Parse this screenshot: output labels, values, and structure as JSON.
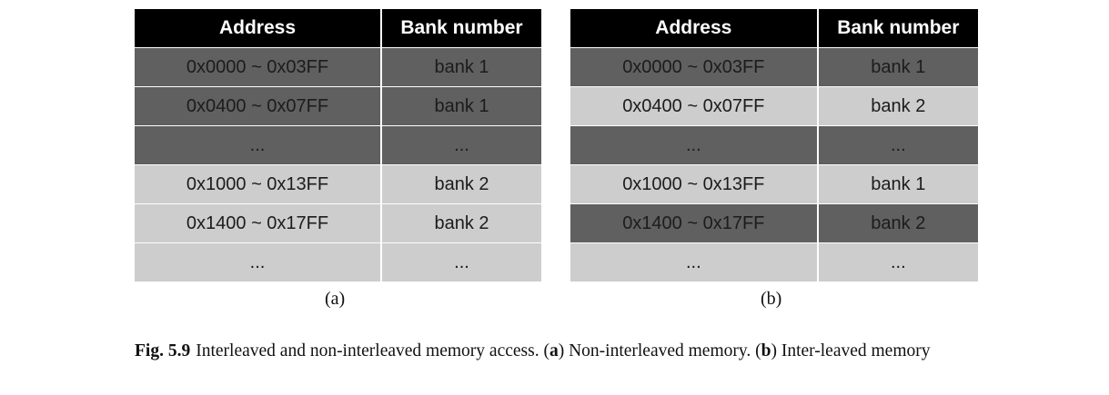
{
  "tables": [
    {
      "headers": [
        "Address",
        "Bank number"
      ],
      "rows": [
        {
          "address": "0x0000 ~ 0x03FF",
          "bank": "bank 1",
          "shade": "dark"
        },
        {
          "address": "0x0400 ~ 0x07FF",
          "bank": "bank 1",
          "shade": "dark"
        },
        {
          "address": "...",
          "bank": "...",
          "shade": "dark"
        },
        {
          "address": "0x1000 ~ 0x13FF",
          "bank": "bank 2",
          "shade": "light"
        },
        {
          "address": "0x1400 ~ 0x17FF",
          "bank": "bank 2",
          "shade": "light"
        },
        {
          "address": "...",
          "bank": "...",
          "shade": "light"
        }
      ],
      "label": "(a)"
    },
    {
      "headers": [
        "Address",
        "Bank number"
      ],
      "rows": [
        {
          "address": "0x0000 ~ 0x03FF",
          "bank": "bank 1",
          "shade": "dark"
        },
        {
          "address": "0x0400 ~ 0x07FF",
          "bank": "bank 2",
          "shade": "light"
        },
        {
          "address": "...",
          "bank": "...",
          "shade": "dark"
        },
        {
          "address": "0x1000 ~ 0x13FF",
          "bank": "bank 1",
          "shade": "light"
        },
        {
          "address": "0x1400 ~ 0x17FF",
          "bank": "bank 2",
          "shade": "dark"
        },
        {
          "address": "...",
          "bank": "...",
          "shade": "light"
        }
      ],
      "label": "(b)"
    }
  ],
  "caption": {
    "figure_label": "Fig. 5.9",
    "text_1": "Interleaved and non-interleaved memory access. (",
    "a_letter": "a",
    "text_2": ") Non-interleaved memory. (",
    "b_letter": "b",
    "text_3": ") Inter-leaved memory"
  },
  "colors": {
    "header_bg": "#000000",
    "dark_row": "#606060",
    "light_row": "#cdcdcd"
  }
}
